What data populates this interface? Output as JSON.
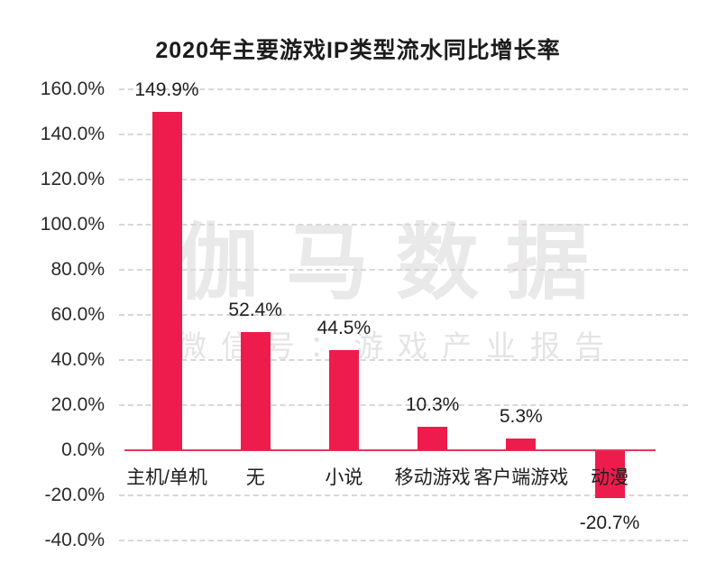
{
  "page": {
    "background": "#ffffff"
  },
  "watermark": {
    "line1": "伽马数据",
    "line2": "微信号：游戏产业报告"
  },
  "chart_data": {
    "type": "bar",
    "title": "2020年主要游戏IP类型流水同比增长率",
    "categories": [
      "主机/单机",
      "无",
      "小说",
      "移动游戏",
      "客户端游戏",
      "动漫"
    ],
    "values": [
      149.9,
      52.4,
      44.5,
      10.3,
      5.3,
      -20.7
    ],
    "value_labels": [
      "149.9%",
      "52.4%",
      "44.5%",
      "10.3%",
      "5.3%",
      "-20.7%"
    ],
    "xlabel": "",
    "ylabel": "",
    "ylim": [
      -40,
      160
    ],
    "ytick_step": 20,
    "ytick_labels": [
      "160.0%",
      "140.0%",
      "120.0%",
      "100.0%",
      "80.0%",
      "60.0%",
      "40.0%",
      "20.0%",
      "0.0%",
      "-20.0%",
      "-40.0%"
    ],
    "ytick_values": [
      160,
      140,
      120,
      100,
      80,
      60,
      40,
      20,
      0,
      -20,
      -40
    ],
    "grid": "horizontal-dashed",
    "legend": "none",
    "bar_color": "#ED1C4C",
    "zero_line_color": "#E8365B",
    "gridline_color": "#dcd6d6"
  }
}
